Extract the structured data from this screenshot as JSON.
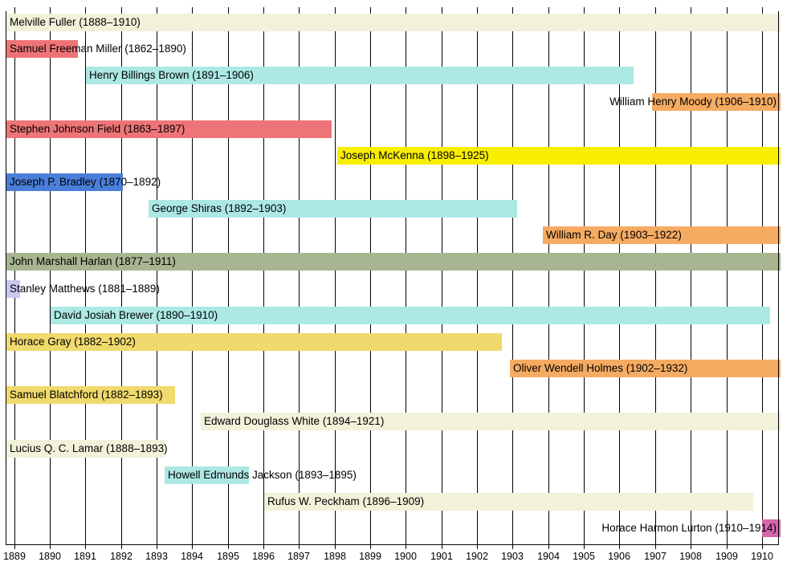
{
  "chart_data": {
    "type": "bar",
    "subtype": "gantt-timeline",
    "title": "",
    "xlabel": "",
    "ylabel": "",
    "grid": "vertical",
    "legend": "none",
    "xlim": [
      1888.78,
      1910.47
    ],
    "x_ticks": [
      "1889",
      "1890",
      "1891",
      "1892",
      "1893",
      "1894",
      "1895",
      "1896",
      "1897",
      "1898",
      "1899",
      "1900",
      "1901",
      "1902",
      "1903",
      "1904",
      "1905",
      "1906",
      "1907",
      "1908",
      "1909",
      "1910"
    ],
    "bars": [
      {
        "label": "Melville Fuller (1888–1910)",
        "start": 1888.78,
        "end": 1910.47,
        "color": "#f2f1da",
        "align": "left"
      },
      {
        "label": "Samuel Freeman Miller (1862–1890)",
        "start": 1888.78,
        "end": 1890.8,
        "color": "#ee7477",
        "align": "left"
      },
      {
        "label": "Henry Billings Brown (1891–1906)",
        "start": 1891.02,
        "end": 1906.4,
        "color": "#ace8e4",
        "align": "left"
      },
      {
        "label": "William Henry Moody (1906–1910)",
        "start": 1906.92,
        "end": 1910.47,
        "color": "#f5ab62",
        "align": "right"
      },
      {
        "label": "Stephen Johnson Field (1863–1897)",
        "start": 1888.78,
        "end": 1897.92,
        "color": "#ee7477",
        "align": "left"
      },
      {
        "label": "Joseph McKenna (1898–1925)",
        "start": 1898.07,
        "end": 1910.47,
        "color": "#f8ee00",
        "align": "left"
      },
      {
        "label": "Joseph P. Bradley (1870–1892)",
        "start": 1888.78,
        "end": 1892.06,
        "color": "#4a7ed9",
        "align": "left"
      },
      {
        "label": "George Shiras (1892–1903)",
        "start": 1892.78,
        "end": 1903.12,
        "color": "#ace8e4",
        "align": "left"
      },
      {
        "label": "William R. Day (1903–1922)",
        "start": 1903.85,
        "end": 1910.47,
        "color": "#f5ab62",
        "align": "left"
      },
      {
        "label": "John Marshall Harlan (1877–1911)",
        "start": 1888.78,
        "end": 1910.47,
        "color": "#a8b591",
        "align": "left"
      },
      {
        "label": "Stanley Matthews (1881–1889)",
        "start": 1888.78,
        "end": 1889.18,
        "color": "#c8c6f2",
        "align": "left"
      },
      {
        "label": "David Josiah Brewer (1890–1910)",
        "start": 1890.02,
        "end": 1910.22,
        "color": "#ace8e4",
        "align": "left"
      },
      {
        "label": "Horace Gray (1882–1902)",
        "start": 1888.78,
        "end": 1902.7,
        "color": "#f0d96d",
        "align": "left"
      },
      {
        "label": "Oliver Wendell Holmes (1902–1932)",
        "start": 1902.92,
        "end": 1910.47,
        "color": "#f5ab62",
        "align": "left"
      },
      {
        "label": "Samuel Blatchford (1882–1893)",
        "start": 1888.78,
        "end": 1893.51,
        "color": "#f0d96d",
        "align": "left"
      },
      {
        "label": "Edward Douglass White (1894–1921)",
        "start": 1894.24,
        "end": 1910.47,
        "color": "#f2f1da",
        "align": "left"
      },
      {
        "label": "Lucius Q. C. Lamar (1888–1893)",
        "start": 1888.78,
        "end": 1893.26,
        "color": "#f2f1da",
        "align": "left"
      },
      {
        "label": "Howell Edmunds Jackson (1893–1895)",
        "start": 1893.22,
        "end": 1895.6,
        "color": "#ace8e4",
        "align": "left"
      },
      {
        "label": "Rufus W. Peckham (1896–1909)",
        "start": 1896.02,
        "end": 1909.75,
        "color": "#f2f1da",
        "align": "left"
      },
      {
        "label": "Horace Harmon Lurton (1910–1914)",
        "start": 1910.0,
        "end": 1910.47,
        "color": "#d466ae",
        "align": "right"
      }
    ],
    "colors": {
      "cleveland_cream": "#f2f1da",
      "lincoln_red": "#ee7477",
      "harrison_turquoise": "#ace8e4",
      "roosevelt_orange": "#f5ab62",
      "mckinley_yellow": "#f8ee00",
      "grant_blue": "#4a7ed9",
      "hayes_olive": "#a8b591",
      "garfield_lavender": "#c8c6f2",
      "arthur_gold": "#f0d96d",
      "taft_magenta": "#d466ae",
      "text": "#000000",
      "background": "#ffffff",
      "gridline": "#000000"
    }
  }
}
